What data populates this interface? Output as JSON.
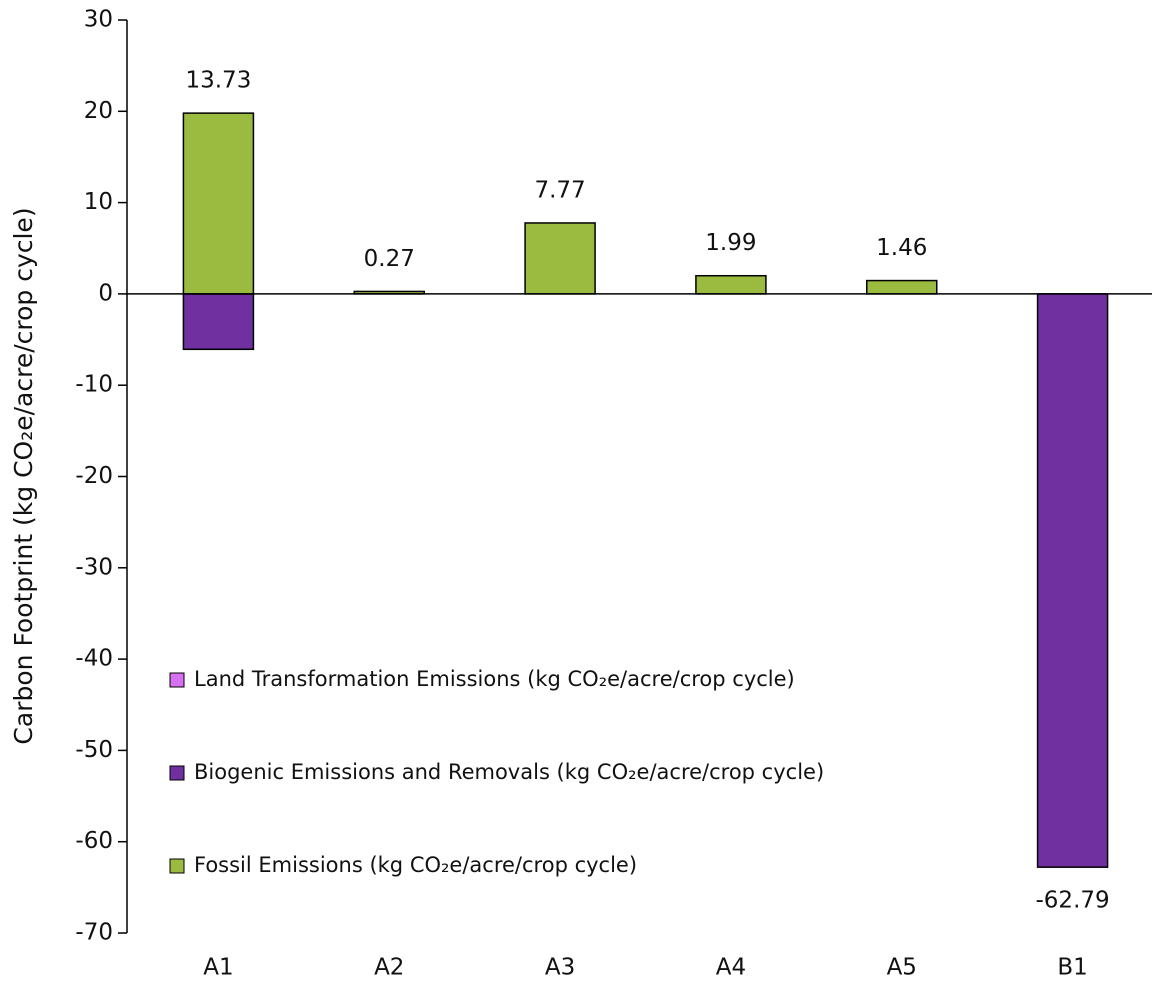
{
  "chart_data": {
    "type": "stacked_bar",
    "ylabel": "Carbon Footprint (kg CO₂e/acre/crop cycle)",
    "categories": [
      "A1",
      "A2",
      "A3",
      "A4",
      "A5",
      "B1"
    ],
    "series": [
      {
        "name": "Land Transformation Emissions (kg CO₂e/acre/crop cycle)",
        "color": "#d670f0",
        "values": [
          0,
          0,
          0,
          0,
          0,
          0
        ]
      },
      {
        "name": "Biogenic Emissions and Removals (kg CO₂e/acre/crop cycle)",
        "color": "#7030a0",
        "values": [
          -6.07,
          0,
          0,
          0,
          0,
          -62.79
        ]
      },
      {
        "name": "Fossil Emissions (kg CO₂e/acre/crop cycle)",
        "color": "#9bbb40",
        "values": [
          19.8,
          0.27,
          7.77,
          1.99,
          1.46,
          0
        ]
      }
    ],
    "totals": [
      13.73,
      0.27,
      7.77,
      1.99,
      1.46,
      -62.79
    ],
    "ylim": [
      -70,
      30
    ],
    "yticks": [
      -70,
      -60,
      -50,
      -40,
      -30,
      -20,
      -10,
      0,
      10,
      20,
      30
    ],
    "legend": "lower left"
  }
}
